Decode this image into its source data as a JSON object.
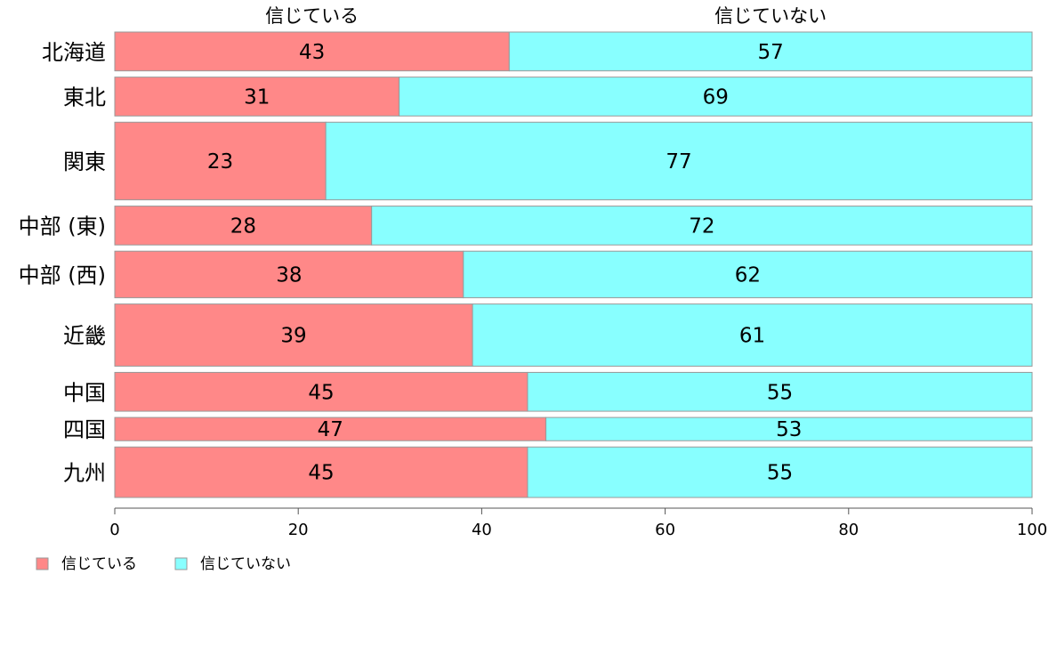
{
  "chart_data": {
    "type": "bar",
    "orientation": "horizontal",
    "stacked": true,
    "categories": [
      "北海道",
      "東北",
      "関東",
      "中部 (東)",
      "中部 (西)",
      "近畿",
      "中国",
      "四国",
      "九州"
    ],
    "series": [
      {
        "name": "信じている",
        "values": [
          43,
          31,
          23,
          28,
          38,
          39,
          45,
          47,
          45
        ],
        "color": "#ff8888"
      },
      {
        "name": "信じていない",
        "values": [
          57,
          69,
          77,
          72,
          62,
          61,
          55,
          53,
          55
        ],
        "color": "#88ffff"
      }
    ],
    "relative_widths": [
      1,
      1,
      2,
      1,
      1.2,
      1.6,
      1,
      0.6,
      1.3
    ],
    "xlim": [
      0,
      100
    ],
    "xticks": [
      0,
      20,
      40,
      60,
      80,
      100
    ],
    "legend_position": "bottom-left",
    "grid": false,
    "edge_color": "#999999"
  }
}
